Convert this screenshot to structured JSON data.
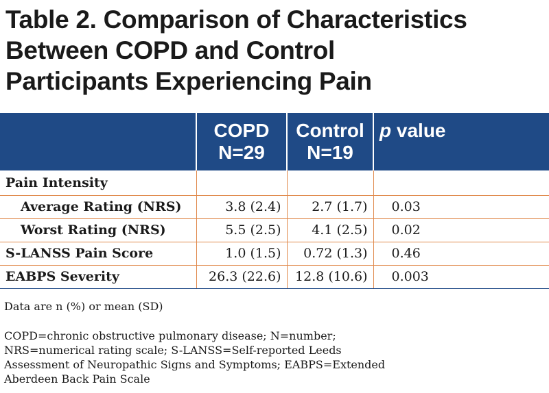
{
  "title": {
    "line1": "Table 2. Comparison of Characteristics",
    "line2": "Between COPD and Control",
    "line3": "Participants Experiencing Pain"
  },
  "table": {
    "headers": [
      {
        "line1": "",
        "line2": ""
      },
      {
        "line1": "COPD",
        "line2": "N=29"
      },
      {
        "line1": "Control",
        "line2": "N=19"
      },
      {
        "line1": "p value",
        "line2": ""
      }
    ],
    "rows": [
      {
        "label": "Pain Intensity",
        "copd": "",
        "control": "",
        "p": ""
      },
      {
        "label": "Average Rating (NRS)",
        "copd": "3.8 (2.4)",
        "control": "2.7 (1.7)",
        "p": "0.03"
      },
      {
        "label": "Worst Rating (NRS)",
        "copd": "5.5 (2.5)",
        "control": "4.1 (2.5)",
        "p": "0.02"
      },
      {
        "label": "S-LANSS Pain Score",
        "copd": "1.0 (1.5)",
        "control": "0.72 (1.3)",
        "p": "0.46"
      },
      {
        "label": "EABPS Severity",
        "copd": "26.3 (22.6)",
        "control": "12.8 (10.6)",
        "p": "0.003"
      }
    ]
  },
  "notes": {
    "line1": "Data are n (%) or mean (SD)",
    "line2": "COPD=chronic obstructive pulmonary disease; N=number;",
    "line3": "NRS=numerical rating scale; S-LANSS=Self-reported Leeds",
    "line4": "Assessment of Neuropathic Signs and Symptoms; EABPS=Extended",
    "line5": "Aberdeen Back Pain Scale"
  },
  "colors": {
    "header_bg": "#1f4a86",
    "row_border": "#e0884a"
  }
}
